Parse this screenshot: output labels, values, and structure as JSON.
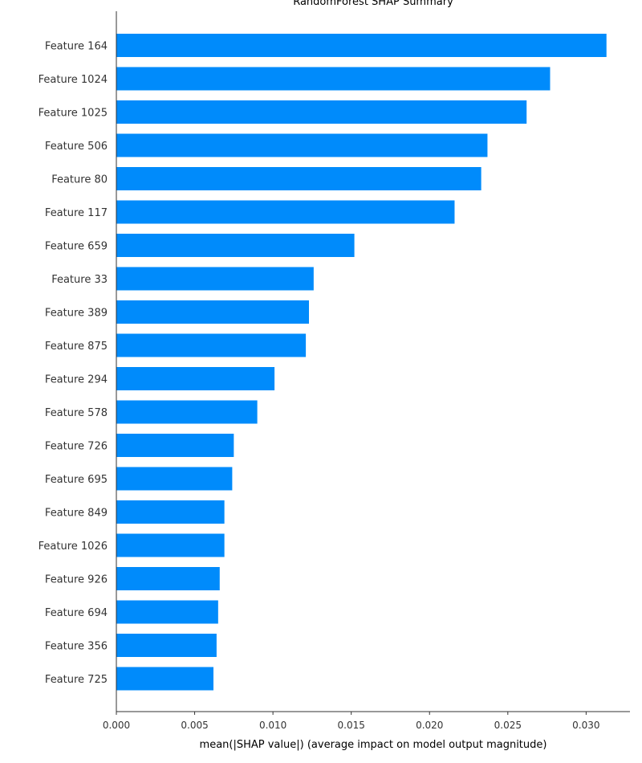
{
  "chart_data": {
    "type": "bar",
    "orientation": "horizontal",
    "title": "RandomForest SHAP Summary",
    "xlabel": "mean(|SHAP value|) (average impact on model output magnitude)",
    "ylabel": "",
    "xlim": [
      0,
      0.0328
    ],
    "xticks": [
      "0.000",
      "0.005",
      "0.010",
      "0.015",
      "0.020",
      "0.025",
      "0.030"
    ],
    "bar_color": "#008bfb",
    "grid": false,
    "categories": [
      "Feature 164",
      "Feature 1024",
      "Feature 1025",
      "Feature 506",
      "Feature 80",
      "Feature 117",
      "Feature 659",
      "Feature 33",
      "Feature 389",
      "Feature 875",
      "Feature 294",
      "Feature 578",
      "Feature 726",
      "Feature 695",
      "Feature 849",
      "Feature 1026",
      "Feature 926",
      "Feature 694",
      "Feature 356",
      "Feature 725"
    ],
    "values": [
      0.0313,
      0.0277,
      0.0262,
      0.0237,
      0.0233,
      0.0216,
      0.0152,
      0.0126,
      0.0123,
      0.0121,
      0.0101,
      0.009,
      0.0075,
      0.0074,
      0.0069,
      0.0069,
      0.0066,
      0.0065,
      0.0064,
      0.0062
    ]
  }
}
